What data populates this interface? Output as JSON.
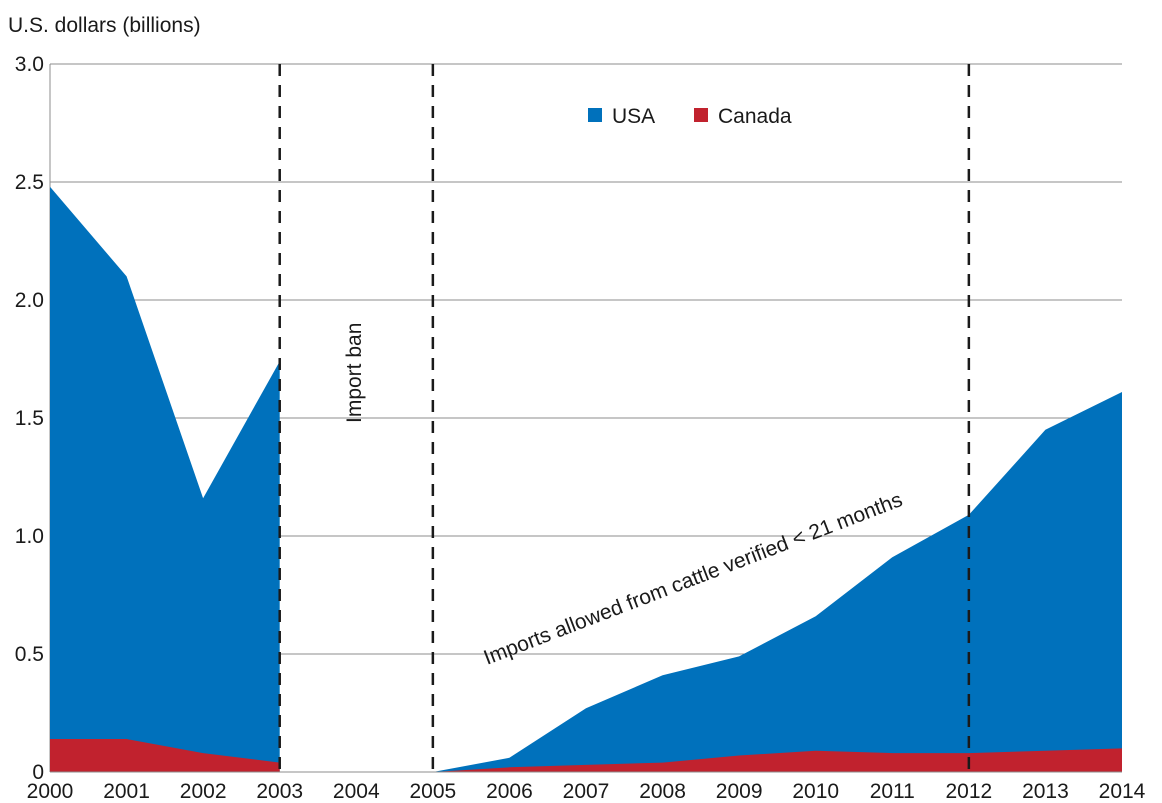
{
  "chart_data": {
    "type": "area",
    "ylabel": "U.S. dollars (billions)",
    "ylim": [
      0,
      3.0
    ],
    "y_ticks": [
      "0",
      "0.5",
      "1.0",
      "1.5",
      "2.0",
      "2.5",
      "3.0"
    ],
    "y_tick_values": [
      0,
      0.5,
      1.0,
      1.5,
      2.0,
      2.5,
      3.0
    ],
    "x_ticks": [
      "2000",
      "2001",
      "2002",
      "2003",
      "2004",
      "2005",
      "2006",
      "2007",
      "2008",
      "2009",
      "2010",
      "2011",
      "2012",
      "2013",
      "2014"
    ],
    "stacked": true,
    "grid": true,
    "legend_position": "top-center",
    "series": [
      {
        "name": "USA",
        "color": "#0071bc",
        "segments": [
          {
            "x": [
              2000,
              2001,
              2002,
              2003
            ],
            "total": [
              2.48,
              2.1,
              1.16,
              1.74
            ]
          },
          {
            "x": [
              2005,
              2006,
              2007,
              2008,
              2009,
              2010,
              2011,
              2012,
              2013,
              2014
            ],
            "total": [
              0.0,
              0.06,
              0.27,
              0.41,
              0.49,
              0.66,
              0.91,
              1.09,
              1.45,
              1.61
            ]
          }
        ]
      },
      {
        "name": "Canada",
        "color": "#c1222e",
        "segments": [
          {
            "x": [
              2000,
              2001,
              2002,
              2003
            ],
            "values": [
              0.14,
              0.14,
              0.08,
              0.04
            ]
          },
          {
            "x": [
              2005,
              2006,
              2007,
              2008,
              2009,
              2010,
              2011,
              2012,
              2013,
              2014
            ],
            "values": [
              0.0,
              0.02,
              0.03,
              0.04,
              0.07,
              0.09,
              0.08,
              0.08,
              0.09,
              0.1
            ]
          }
        ]
      }
    ],
    "vlines": [
      2003,
      2005,
      2012
    ],
    "annotations": [
      {
        "text": "Import ban"
      },
      {
        "text": "Imports allowed from cattle verified < 21 months"
      }
    ]
  }
}
